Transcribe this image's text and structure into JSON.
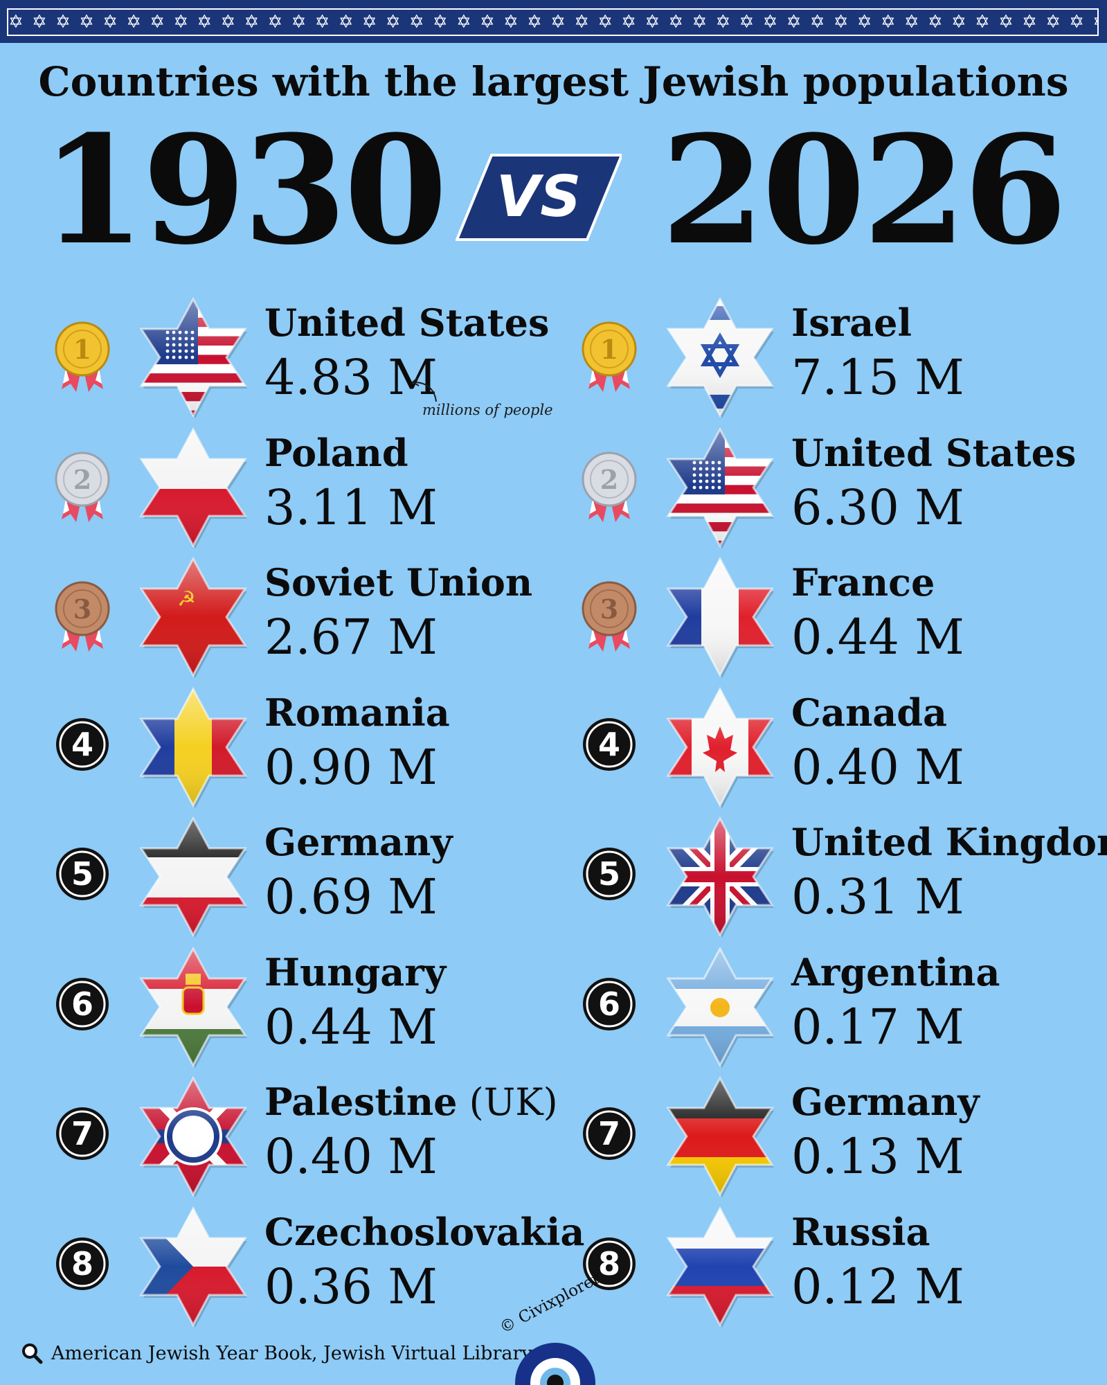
{
  "title": "Countries with the largest Jewish populations",
  "year_left": "1930",
  "vs": "VS",
  "year_right": "2026",
  "annotation": "millions of people",
  "source": "American Jewish Year Book, Jewish Virtual Library",
  "credit": "© Civixplorer",
  "star_band": "✡ ✡ ✡ ✡ ✡ ✡ ✡ ✡ ✡ ✡ ✡ ✡ ✡ ✡ ✡ ✡ ✡ ✡ ✡ ✡ ✡ ✡ ✡ ✡ ✡ ✡ ✡ ✡ ✡ ✡ ✡ ✡ ✡ ✡ ✡ ✡ ✡ ✡ ✡ ✡ ✡ ✡ ✡ ✡ ✡ ✡ ✡ ✡ ✡ ✡ ✡ ✡ ✡ ✡ ✡",
  "colors": {
    "background": "#8ecbf6",
    "navy": "#1b3579",
    "gold": "#e8b928",
    "silver": "#c9ccd3",
    "bronze": "#b3785a"
  },
  "list_1930": [
    {
      "rank": "1",
      "country": "United States",
      "value": "4.83 M",
      "flag": "us-flag-star-icon"
    },
    {
      "rank": "2",
      "country": "Poland",
      "value": "3.11 M",
      "flag": "poland-flag-star-icon"
    },
    {
      "rank": "3",
      "country": "Soviet Union",
      "value": "2.67 M",
      "flag": "soviet-flag-star-icon"
    },
    {
      "rank": "4",
      "country": "Romania",
      "value": "0.90 M",
      "flag": "romania-flag-star-icon"
    },
    {
      "rank": "5",
      "country": "Germany",
      "value": "0.69 M",
      "flag": "german-empire-flag-star-icon"
    },
    {
      "rank": "6",
      "country": "Hungary",
      "value": "0.44 M",
      "flag": "hungary-flag-star-icon"
    },
    {
      "rank": "7",
      "country": "Palestine",
      "suffix": " (UK)",
      "value": "0.40 M",
      "flag": "mandate-palestine-flag-star-icon"
    },
    {
      "rank": "8",
      "country": "Czechoslovakia",
      "value": "0.36 M",
      "flag": "czechoslovakia-flag-star-icon"
    }
  ],
  "list_2026": [
    {
      "rank": "1",
      "country": "Israel",
      "value": "7.15 M",
      "flag": "israel-flag-star-icon"
    },
    {
      "rank": "2",
      "country": "United States",
      "value": "6.30 M",
      "flag": "us-flag-star-icon"
    },
    {
      "rank": "3",
      "country": "France",
      "value": "0.44 M",
      "flag": "france-flag-star-icon"
    },
    {
      "rank": "4",
      "country": "Canada",
      "value": "0.40 M",
      "flag": "canada-flag-star-icon"
    },
    {
      "rank": "5",
      "country": "United Kingdom",
      "value": "0.31 M",
      "flag": "uk-flag-star-icon"
    },
    {
      "rank": "6",
      "country": "Argentina",
      "value": "0.17 M",
      "flag": "argentina-flag-star-icon"
    },
    {
      "rank": "7",
      "country": "Germany",
      "value": "0.13 M",
      "flag": "germany-flag-star-icon"
    },
    {
      "rank": "8",
      "country": "Russia",
      "value": "0.12 M",
      "flag": "russia-flag-star-icon"
    }
  ]
}
